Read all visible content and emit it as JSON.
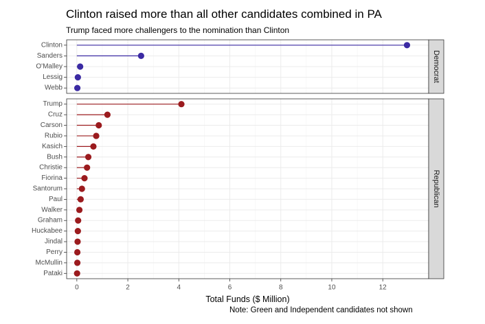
{
  "title": "Clinton raised more than all other candidates combined in PA",
  "subtitle": "Trump faced more challengers to the nomination than Clinton",
  "note": "Note: Green and Independent candidates not shown",
  "colors": {
    "democrat": "#3b2aa3",
    "republican": "#9b1b1e",
    "strip": "#d9d9d9",
    "grid": "#ebebeb"
  },
  "chart_data": {
    "type": "lollipop",
    "xlabel": "Total Funds ($ Million)",
    "ylabel": "",
    "xlim": [
      -0.4,
      13.8
    ],
    "xticks": [
      0,
      2,
      4,
      6,
      8,
      10,
      12
    ],
    "grid": true,
    "facets": [
      {
        "name": "Democrat",
        "color": "#3b2aa3",
        "categories": [
          "Clinton",
          "Sanders",
          "O'Malley",
          "Lessig",
          "Webb"
        ],
        "values": [
          12.95,
          2.52,
          0.13,
          0.04,
          0.02
        ]
      },
      {
        "name": "Republican",
        "color": "#9b1b1e",
        "categories": [
          "Trump",
          "Cruz",
          "Carson",
          "Rubio",
          "Kasich",
          "Bush",
          "Christie",
          "Fiorina",
          "Santorum",
          "Paul",
          "Walker",
          "Graham",
          "Huckabee",
          "Jindal",
          "Perry",
          "McMullin",
          "Pataki"
        ],
        "values": [
          4.1,
          1.2,
          0.86,
          0.76,
          0.65,
          0.45,
          0.4,
          0.3,
          0.2,
          0.15,
          0.1,
          0.05,
          0.04,
          0.03,
          0.02,
          0.02,
          0.01
        ]
      }
    ]
  }
}
